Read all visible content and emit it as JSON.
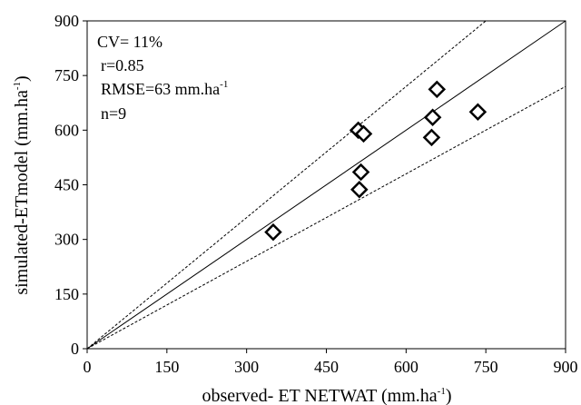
{
  "chart_data": {
    "type": "scatter",
    "xlabel": "observed- ET NETWAT (mm.ha",
    "xlabel_sup": "-1",
    "xlabel_tail": ")",
    "ylabel": "simulated-ETmodel (mm.ha",
    "ylabel_sup": "-1",
    "ylabel_tail": ")",
    "xlim": [
      0,
      900
    ],
    "ylim": [
      0,
      900
    ],
    "xticks": [
      "0",
      "150",
      "300",
      "450",
      "600",
      "750",
      "900"
    ],
    "yticks": [
      "0",
      "150",
      "300",
      "450",
      "600",
      "750",
      "900"
    ],
    "stats": {
      "cv": "CV= 11%",
      "r": "r=0.85",
      "rmse": "RMSE=63 mm.ha",
      "rmse_sup": "-1",
      "n": "n=9"
    },
    "points": [
      {
        "x": 350,
        "y": 320
      },
      {
        "x": 510,
        "y": 600
      },
      {
        "x": 520,
        "y": 590
      },
      {
        "x": 515,
        "y": 485
      },
      {
        "x": 512,
        "y": 437
      },
      {
        "x": 650,
        "y": 635
      },
      {
        "x": 648,
        "y": 580
      },
      {
        "x": 658,
        "y": 712
      },
      {
        "x": 735,
        "y": 650
      }
    ],
    "lines": {
      "one_to_one_slope": 1.0,
      "upper_slope": 1.2,
      "lower_slope": 0.8
    },
    "grid": false,
    "legend": "none"
  }
}
